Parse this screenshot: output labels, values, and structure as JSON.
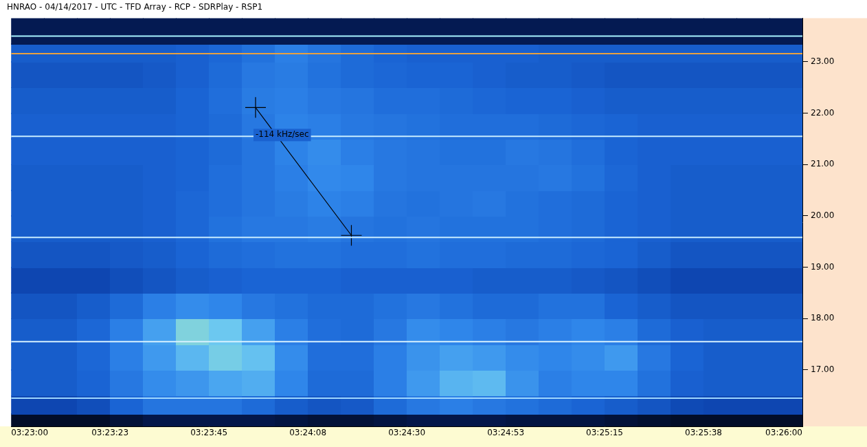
{
  "chart_data": {
    "type": "heatmap",
    "title": "HNRAO - 04/14/2017 - UTC - TFD Array - RCP - SDRPlay - RSP1",
    "xlim": [
      12180,
      12360
    ],
    "xticks": [
      {
        "value": 12180,
        "label": "03:23:00"
      },
      {
        "value": 12202.5,
        "label": "03:23:23"
      },
      {
        "value": 12225,
        "label": "03:23:45"
      },
      {
        "value": 12247.5,
        "label": "03:24:08"
      },
      {
        "value": 12270,
        "label": "03:24:30"
      },
      {
        "value": 12292.5,
        "label": "03:24:53"
      },
      {
        "value": 12315,
        "label": "03:25:15"
      },
      {
        "value": 12337.5,
        "label": "03:25:38"
      },
      {
        "value": 12360,
        "label": "03:26:00"
      }
    ],
    "ylim": [
      15.9,
      23.85
    ],
    "yticks": [
      {
        "value": 17,
        "label": "17.00"
      },
      {
        "value": 18,
        "label": "18.00"
      },
      {
        "value": 19,
        "label": "19.00"
      },
      {
        "value": 20,
        "label": "20.00"
      },
      {
        "value": 21,
        "label": "21.00"
      },
      {
        "value": 22,
        "label": "22.00"
      },
      {
        "value": 23,
        "label": "23.00"
      }
    ],
    "grid": false,
    "x_edges": [
      12180,
      12187.5,
      12195,
      12202.5,
      12210,
      12217.5,
      12225,
      12232.5,
      12240,
      12247.5,
      12255,
      12262.5,
      12270,
      12277.5,
      12285,
      12292.5,
      12300,
      12307.5,
      12315,
      12322.5,
      12330,
      12337.5,
      12345,
      12352.5,
      12360
    ],
    "y_edges": [
      15.9,
      16.15,
      16.5,
      17,
      17.5,
      18,
      18.5,
      19,
      19.5,
      20,
      20.5,
      21,
      21.5,
      22,
      22.5,
      23,
      23.35,
      23.85
    ],
    "zlim": [
      0,
      10
    ],
    "cells": [
      [
        0.5,
        0.5,
        0.5,
        0.7,
        0.9,
        0.9,
        0.9,
        0.9,
        0.8,
        0.7,
        0.7,
        0.8,
        0.9,
        0.9,
        0.9,
        0.8,
        0.8,
        0.8,
        0.7,
        0.6,
        0.5,
        0.5,
        0.5,
        0.5
      ],
      [
        2.2,
        2.2,
        2.4,
        3.0,
        3.5,
        3.5,
        3.5,
        3.2,
        2.8,
        2.6,
        2.7,
        3.2,
        3.6,
        3.8,
        3.6,
        3.4,
        3.2,
        3.0,
        2.8,
        2.6,
        2.3,
        2.2,
        2.2,
        2.2
      ],
      [
        2.8,
        2.8,
        3.0,
        3.6,
        4.2,
        4.5,
        5.0,
        5.2,
        4.0,
        3.2,
        3.2,
        3.8,
        4.6,
        5.4,
        5.6,
        4.4,
        3.8,
        4.0,
        4.0,
        3.4,
        2.9,
        2.8,
        2.8,
        2.8
      ],
      [
        2.8,
        2.8,
        3.1,
        3.8,
        4.6,
        5.5,
        6.2,
        5.8,
        4.2,
        3.3,
        3.3,
        3.8,
        4.4,
        4.8,
        4.6,
        4.2,
        4.0,
        4.2,
        4.6,
        3.6,
        3.0,
        2.8,
        2.8,
        2.8
      ],
      [
        2.8,
        2.8,
        3.1,
        3.8,
        4.8,
        6.4,
        6.0,
        4.8,
        3.8,
        3.3,
        3.2,
        3.6,
        4.2,
        4.0,
        3.8,
        3.6,
        3.8,
        4.0,
        3.8,
        3.2,
        2.9,
        2.8,
        2.8,
        2.8
      ],
      [
        2.6,
        2.6,
        2.8,
        3.2,
        3.8,
        4.2,
        4.0,
        3.6,
        3.4,
        3.2,
        3.2,
        3.4,
        3.6,
        3.4,
        3.2,
        3.2,
        3.4,
        3.4,
        3.0,
        2.8,
        2.6,
        2.6,
        2.6,
        2.6
      ],
      [
        2.2,
        2.2,
        2.2,
        2.4,
        2.6,
        2.8,
        2.9,
        3.0,
        3.0,
        3.0,
        2.9,
        2.9,
        2.9,
        2.9,
        2.8,
        2.8,
        2.8,
        2.7,
        2.6,
        2.4,
        2.2,
        2.2,
        2.2,
        2.2
      ],
      [
        2.6,
        2.6,
        2.6,
        2.7,
        2.8,
        3.0,
        3.2,
        3.3,
        3.4,
        3.4,
        3.3,
        3.3,
        3.4,
        3.3,
        3.3,
        3.2,
        3.2,
        3.1,
        3.0,
        2.8,
        2.6,
        2.6,
        2.6,
        2.6
      ],
      [
        2.8,
        2.8,
        2.8,
        2.8,
        2.9,
        3.1,
        3.4,
        3.6,
        3.6,
        3.7,
        3.5,
        3.4,
        3.5,
        3.4,
        3.4,
        3.4,
        3.3,
        3.2,
        3.0,
        2.9,
        2.8,
        2.8,
        2.8,
        2.8
      ],
      [
        2.8,
        2.8,
        2.8,
        2.8,
        2.9,
        3.1,
        3.3,
        3.5,
        3.7,
        3.9,
        3.8,
        3.5,
        3.4,
        3.5,
        3.6,
        3.4,
        3.3,
        3.2,
        3.0,
        2.9,
        2.8,
        2.8,
        2.8,
        2.8
      ],
      [
        2.8,
        2.8,
        2.8,
        2.8,
        2.9,
        3.0,
        3.3,
        3.5,
        3.8,
        4.1,
        4.0,
        3.6,
        3.5,
        3.5,
        3.5,
        3.5,
        3.6,
        3.4,
        3.1,
        2.9,
        2.8,
        2.8,
        2.8,
        2.8
      ],
      [
        2.9,
        2.9,
        2.9,
        2.9,
        2.9,
        3.0,
        3.2,
        3.5,
        3.9,
        4.2,
        3.8,
        3.6,
        3.5,
        3.4,
        3.4,
        3.6,
        3.5,
        3.3,
        3.0,
        2.9,
        2.9,
        2.9,
        2.9,
        2.9
      ],
      [
        2.9,
        2.9,
        2.9,
        2.9,
        2.9,
        3.0,
        3.2,
        3.6,
        3.9,
        3.8,
        3.6,
        3.5,
        3.4,
        3.3,
        3.3,
        3.3,
        3.2,
        3.1,
        3.0,
        2.9,
        2.9,
        2.9,
        2.9,
        2.9
      ],
      [
        2.8,
        2.8,
        2.8,
        2.8,
        2.8,
        3.0,
        3.3,
        3.7,
        3.8,
        3.6,
        3.5,
        3.3,
        3.3,
        3.2,
        3.1,
        3.0,
        3.0,
        2.9,
        2.8,
        2.8,
        2.8,
        2.8,
        2.8,
        2.8
      ],
      [
        2.6,
        2.6,
        2.6,
        2.6,
        2.7,
        2.9,
        3.2,
        3.6,
        3.7,
        3.4,
        3.2,
        3.1,
        3.0,
        3.0,
        2.9,
        2.8,
        2.8,
        2.7,
        2.6,
        2.6,
        2.6,
        2.6,
        2.6,
        2.6
      ],
      [
        2.8,
        2.8,
        2.8,
        2.8,
        2.8,
        2.9,
        3.1,
        3.4,
        3.8,
        3.5,
        3.2,
        3.0,
        2.9,
        2.9,
        2.9,
        2.9,
        2.8,
        2.8,
        2.8,
        2.8,
        2.8,
        2.8,
        2.8,
        2.8
      ],
      [
        1.0,
        1.0,
        1.0,
        1.0,
        1.0,
        1.0,
        1.0,
        1.0,
        1.0,
        1.0,
        1.0,
        1.0,
        1.0,
        1.0,
        1.0,
        1.0,
        1.0,
        1.0,
        1.0,
        1.0,
        1.0,
        1.0,
        1.0,
        1.0
      ]
    ],
    "hlines": [
      {
        "y": 23.5,
        "color": "#a8f4ff"
      },
      {
        "y": 23.16,
        "color": "#e8a040"
      },
      {
        "y": 21.55,
        "color": "#c8ecff"
      },
      {
        "y": 19.58,
        "color": "#c8ecff"
      },
      {
        "y": 17.55,
        "color": "#d8f2ff"
      },
      {
        "y": 16.45,
        "color": "#9fd8ff"
      }
    ],
    "annotation": {
      "text": "-114 kHz/sec",
      "x": [
        12235.6,
        12257.4
      ],
      "y": [
        22.11,
        19.62
      ]
    }
  }
}
